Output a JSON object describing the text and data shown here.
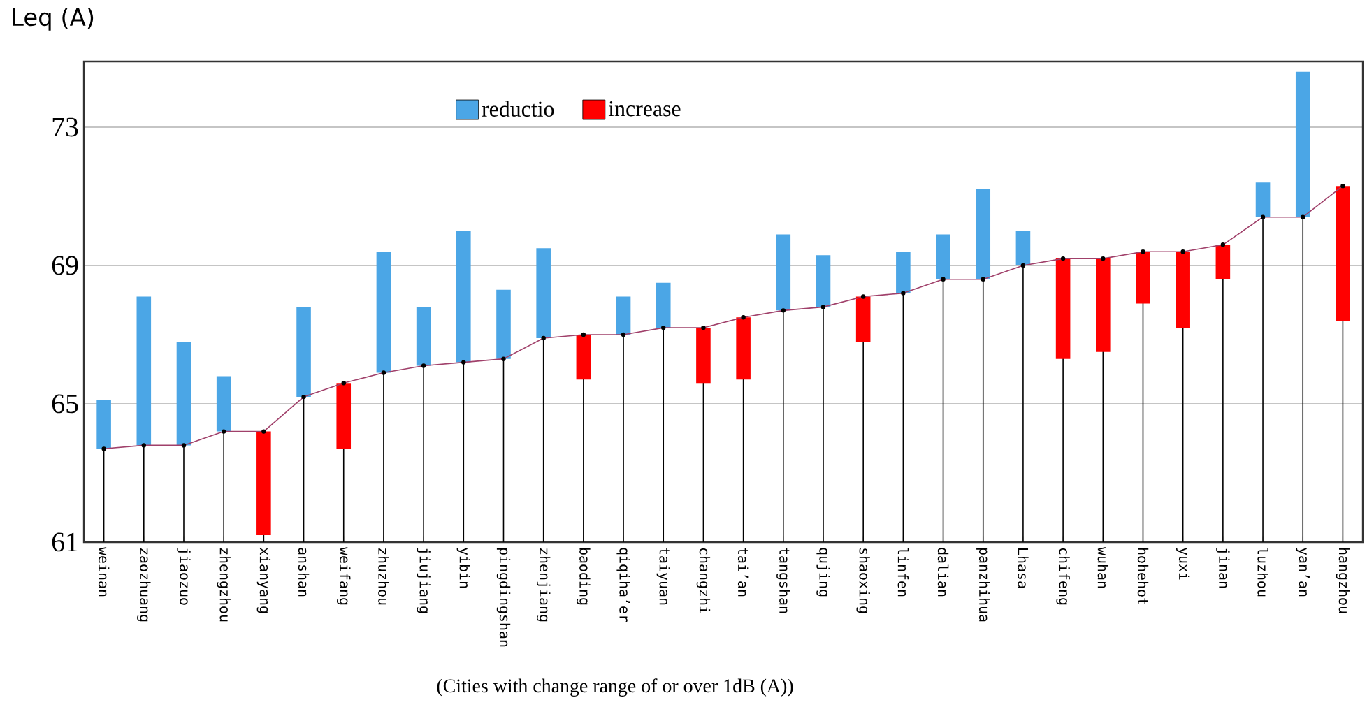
{
  "chart_data": {
    "type": "bar",
    "ylabel": "Leq (A)",
    "xlabel": "(Cities with change range of or over 1dB (A))",
    "categories": [
      "weinan",
      "zaozhuang",
      "jiaozuo",
      "zhengzhou",
      "xianyang",
      "anshan",
      "weifang",
      "zhuzhou",
      "jiujiang",
      "yibin",
      "pingdingshan",
      "zhenjiang",
      "baoding",
      "qiqiha’er",
      "taiyuan",
      "changzhi",
      "tai’an",
      "tangshan",
      "qujing",
      "shaoxing",
      "linfen",
      "dalian",
      "panzhihua",
      "Lhasa",
      "chifeng",
      "wuhan",
      "hohehot",
      "yuxi",
      "jinan",
      "luzhou",
      "yan’an",
      "hangzhou"
    ],
    "series": [
      {
        "name": "reductio",
        "color": "#4ba6e6",
        "base": [
          63.7,
          63.8,
          63.8,
          64.2,
          null,
          65.2,
          null,
          65.9,
          66.1,
          66.2,
          66.3,
          66.9,
          null,
          67.0,
          67.2,
          null,
          null,
          67.7,
          67.8,
          null,
          68.2,
          68.6,
          68.6,
          69.0,
          null,
          null,
          null,
          null,
          null,
          70.4,
          70.4,
          null
        ],
        "values": [
          1.4,
          4.3,
          3.0,
          1.6,
          null,
          2.6,
          null,
          3.5,
          1.7,
          3.8,
          2.0,
          2.6,
          null,
          1.1,
          1.3,
          null,
          null,
          2.2,
          1.5,
          null,
          1.2,
          1.3,
          2.6,
          1.0,
          null,
          null,
          null,
          null,
          null,
          1.0,
          4.2,
          null
        ]
      },
      {
        "name": "increase",
        "color": "#ff0000",
        "base": [
          null,
          null,
          null,
          null,
          61.2,
          null,
          63.7,
          null,
          null,
          null,
          null,
          null,
          65.7,
          null,
          null,
          65.6,
          65.7,
          null,
          null,
          66.8,
          null,
          null,
          null,
          null,
          66.3,
          66.5,
          67.9,
          67.2,
          68.6,
          null,
          null,
          67.4
        ],
        "values": [
          null,
          null,
          null,
          null,
          3.0,
          null,
          1.9,
          null,
          null,
          null,
          null,
          null,
          1.3,
          null,
          null,
          1.6,
          1.8,
          null,
          null,
          1.3,
          null,
          null,
          null,
          null,
          2.9,
          2.7,
          1.5,
          2.2,
          1.0,
          null,
          null,
          3.9
        ]
      },
      {
        "type": "lollipop",
        "color": "#000000",
        "marker": "circle",
        "values": [
          63.7,
          63.8,
          63.8,
          64.2,
          64.2,
          65.2,
          65.6,
          65.9,
          66.1,
          66.2,
          66.3,
          66.9,
          67.0,
          67.0,
          67.2,
          67.2,
          67.5,
          67.7,
          67.8,
          68.1,
          68.2,
          68.6,
          68.6,
          69.0,
          69.2,
          69.2,
          69.4,
          69.4,
          69.6,
          70.4,
          70.4,
          71.3
        ]
      },
      {
        "type": "line",
        "color": "#a0406a",
        "values": [
          63.7,
          63.8,
          63.8,
          64.2,
          64.2,
          65.2,
          65.6,
          65.9,
          66.1,
          66.2,
          66.3,
          66.9,
          67.0,
          67.0,
          67.2,
          67.2,
          67.5,
          67.7,
          67.8,
          68.1,
          68.2,
          68.6,
          68.6,
          69.0,
          69.2,
          69.2,
          69.4,
          69.4,
          69.6,
          70.4,
          70.4,
          71.3
        ]
      }
    ],
    "ylim": [
      61,
      74.9
    ],
    "yticks": [
      61,
      65,
      69,
      73
    ],
    "grid": "y",
    "legend": "top"
  }
}
